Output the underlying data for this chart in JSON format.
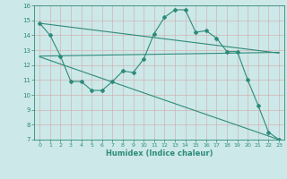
{
  "x": [
    0,
    1,
    2,
    3,
    4,
    5,
    6,
    7,
    8,
    9,
    10,
    11,
    12,
    13,
    14,
    15,
    16,
    17,
    18,
    19,
    20,
    21,
    22,
    23
  ],
  "y_main": [
    14.8,
    14.0,
    12.6,
    10.9,
    10.9,
    10.3,
    10.3,
    10.9,
    11.6,
    11.5,
    12.4,
    14.1,
    15.2,
    15.7,
    15.7,
    14.2,
    14.3,
    13.8,
    12.9,
    12.9,
    11.0,
    9.3,
    7.5,
    7.0
  ],
  "trend1_x": [
    0,
    23
  ],
  "trend1_y": [
    14.8,
    12.8
  ],
  "trend2_x": [
    0,
    23
  ],
  "trend2_y": [
    12.6,
    12.85
  ],
  "trend3_x": [
    0,
    23
  ],
  "trend3_y": [
    12.55,
    7.0
  ],
  "line_color": "#2e8b7a",
  "bg_color": "#cce8e8",
  "grid_color": "#b0d4d4",
  "xlabel": "Humidex (Indice chaleur)",
  "ylim": [
    7,
    16
  ],
  "xlim": [
    -0.5,
    23.5
  ],
  "yticks": [
    7,
    8,
    9,
    10,
    11,
    12,
    13,
    14,
    15,
    16
  ],
  "xticks": [
    0,
    1,
    2,
    3,
    4,
    5,
    6,
    7,
    8,
    9,
    10,
    11,
    12,
    13,
    14,
    15,
    16,
    17,
    18,
    19,
    20,
    21,
    22,
    23
  ]
}
